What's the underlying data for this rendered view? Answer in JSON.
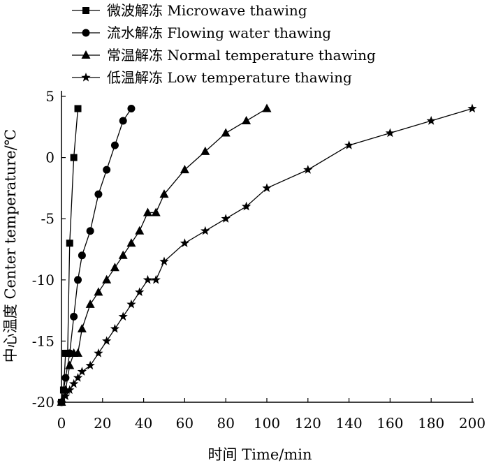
{
  "chart_data": {
    "type": "line",
    "xlabel": "时间 Time/min",
    "ylabel": "中心温度 Center temperature/℃",
    "xlim": [
      0,
      200
    ],
    "ylim": [
      -20,
      5
    ],
    "xticks": [
      0,
      20,
      40,
      60,
      80,
      100,
      120,
      140,
      160,
      180,
      200
    ],
    "yticks": [
      5,
      0,
      -5,
      -10,
      -15,
      -20
    ],
    "grid": false,
    "legend_position": "top-left",
    "line_color": "#000000",
    "series": [
      {
        "name": "微波解冻 Microwave thawing",
        "marker": "square",
        "x": [
          0,
          1,
          2,
          3,
          4,
          6,
          8
        ],
        "y": [
          -20,
          -19,
          -16,
          -16,
          -7,
          0,
          4
        ]
      },
      {
        "name": "流水解冻 Flowing water thawing",
        "marker": "circle",
        "x": [
          0,
          2,
          4,
          6,
          8,
          10,
          14,
          18,
          22,
          26,
          30,
          34
        ],
        "y": [
          -20,
          -18,
          -16,
          -13,
          -10,
          -8,
          -6,
          -3,
          -1,
          1,
          3,
          4
        ]
      },
      {
        "name": "常温解冻 Normal temperature thawing",
        "marker": "triangle",
        "x": [
          0,
          2,
          4,
          6,
          8,
          10,
          14,
          18,
          22,
          26,
          30,
          34,
          38,
          42,
          46,
          50,
          60,
          70,
          80,
          90,
          100
        ],
        "y": [
          -20,
          -19,
          -17,
          -16,
          -16,
          -14,
          -12,
          -11,
          -10,
          -9,
          -8,
          -7,
          -6,
          -4.5,
          -4.5,
          -3,
          -1,
          0.5,
          2,
          3,
          4
        ]
      },
      {
        "name": "低温解冻 Low temperature thawing",
        "marker": "star",
        "x": [
          0,
          2,
          4,
          6,
          8,
          10,
          14,
          18,
          22,
          26,
          30,
          34,
          38,
          42,
          46,
          50,
          60,
          70,
          80,
          90,
          100,
          120,
          140,
          160,
          180,
          200
        ],
        "y": [
          -20,
          -19.5,
          -19,
          -18.5,
          -18,
          -17.5,
          -17,
          -16,
          -15,
          -14,
          -13,
          -12,
          -11,
          -10,
          -10,
          -8.5,
          -7,
          -6,
          -5,
          -4,
          -2.5,
          -1,
          1,
          2,
          3,
          4
        ]
      }
    ]
  }
}
